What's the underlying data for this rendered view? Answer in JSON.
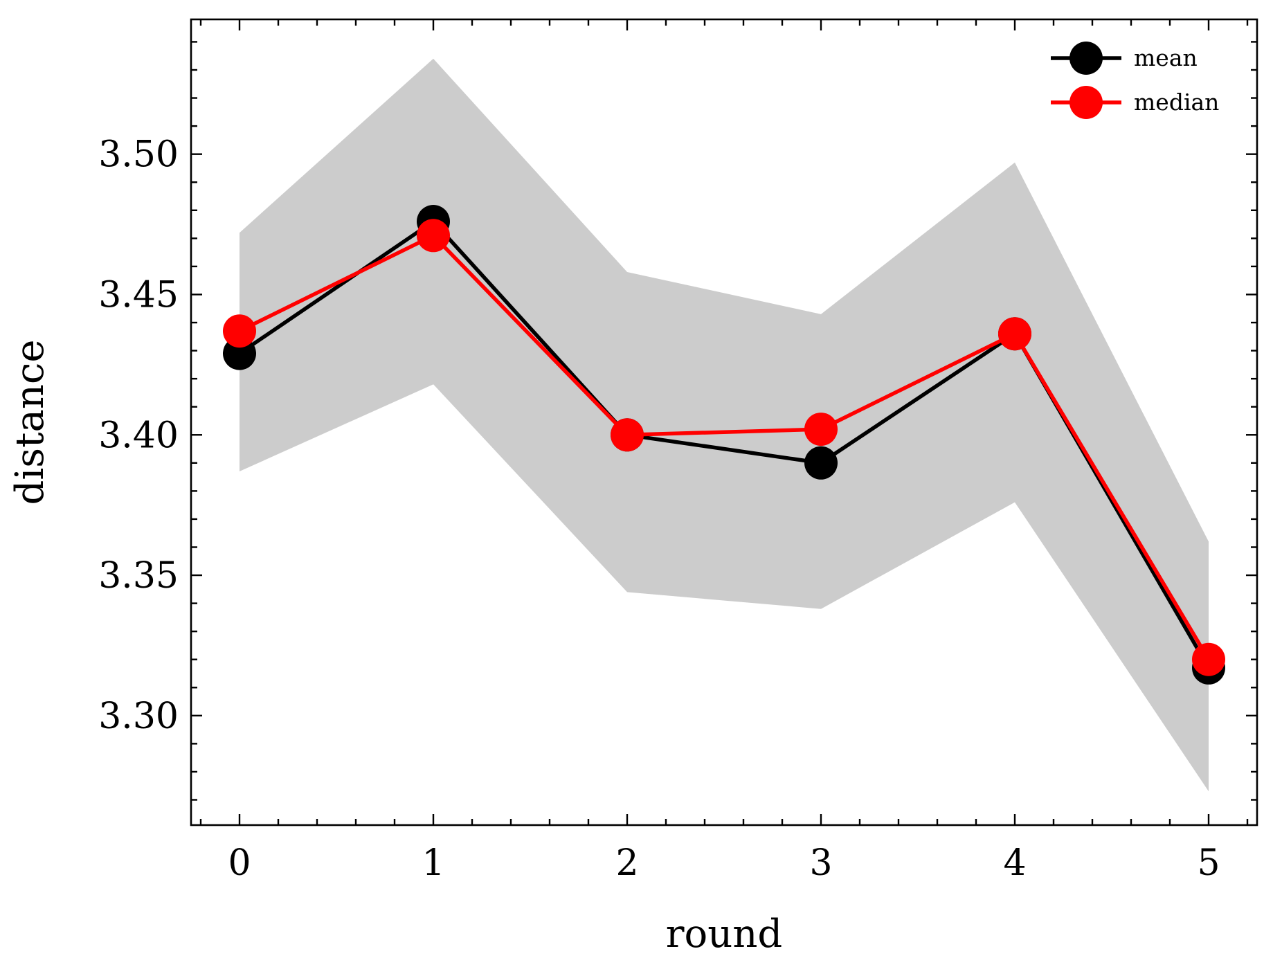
{
  "chart_data": {
    "type": "line",
    "xlabel": "round",
    "ylabel": "distance",
    "x": [
      0,
      1,
      2,
      3,
      4,
      5
    ],
    "xlim": [
      -0.25,
      5.25
    ],
    "ylim": [
      3.261,
      3.548
    ],
    "xticks": [
      0,
      1,
      2,
      3,
      4,
      5
    ],
    "xtick_labels": [
      "0",
      "1",
      "2",
      "3",
      "4",
      "5"
    ],
    "yticks": [
      3.3,
      3.35,
      3.4,
      3.45,
      3.5
    ],
    "ytick_labels": [
      "3.30",
      "3.35",
      "3.40",
      "3.45",
      "3.50"
    ],
    "grid": false,
    "legend_position": "top-right",
    "band": {
      "upper": [
        3.472,
        3.534,
        3.458,
        3.443,
        3.497,
        3.362
      ],
      "lower": [
        3.387,
        3.418,
        3.344,
        3.338,
        3.376,
        3.273
      ],
      "color": "#cccccc"
    },
    "series": [
      {
        "name": "mean",
        "values": [
          3.429,
          3.476,
          3.4,
          3.39,
          3.436,
          3.317
        ],
        "color": "#000000"
      },
      {
        "name": "median",
        "values": [
          3.437,
          3.471,
          3.4,
          3.402,
          3.436,
          3.32
        ],
        "color": "#ff0000"
      }
    ]
  }
}
